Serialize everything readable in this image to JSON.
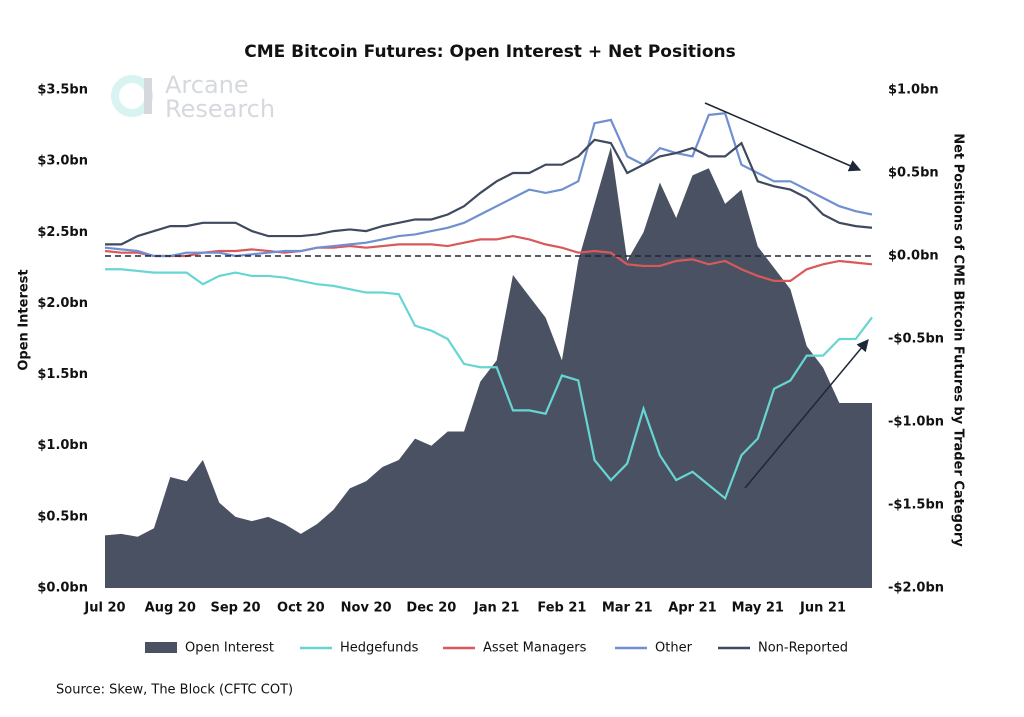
{
  "chart_data": {
    "type": "combo",
    "title": "CME Bitcoin Futures: Open Interest + Net Positions",
    "ylabel": "Open Interest",
    "y2label": "Net Positions of CME Bitcoin Futures by Trader Category",
    "source": "Source: Skew, The Block (CFTC COT)",
    "logo": [
      "Arcane",
      "Research"
    ],
    "x": [
      0,
      0.25,
      0.5,
      0.75,
      1,
      1.25,
      1.5,
      1.75,
      2,
      2.25,
      2.5,
      2.75,
      3,
      3.25,
      3.5,
      3.75,
      4,
      4.25,
      4.5,
      4.75,
      5,
      5.25,
      5.5,
      5.75,
      6,
      6.25,
      6.5,
      6.75,
      7,
      7.25,
      7.5,
      7.75,
      8,
      8.25,
      8.5,
      8.75,
      9,
      9.25,
      9.5,
      9.75,
      10,
      10.25,
      10.5,
      10.75,
      11,
      11.25,
      11.5,
      11.75
    ],
    "xlim": [
      0,
      11.75
    ],
    "xticks": [
      {
        "value": 0,
        "label": "Jul 20"
      },
      {
        "value": 1,
        "label": "Aug 20"
      },
      {
        "value": 2,
        "label": "Sep 20"
      },
      {
        "value": 3,
        "label": "Oct 20"
      },
      {
        "value": 4,
        "label": "Nov 20"
      },
      {
        "value": 5,
        "label": "Dec 20"
      },
      {
        "value": 6,
        "label": "Jan 21"
      },
      {
        "value": 7,
        "label": "Feb 21"
      },
      {
        "value": 8,
        "label": "Mar 21"
      },
      {
        "value": 9,
        "label": "Apr 21"
      },
      {
        "value": 10,
        "label": "May 21"
      },
      {
        "value": 11,
        "label": "Jun 21"
      }
    ],
    "ylim": [
      0,
      3.5
    ],
    "yticks": [
      {
        "value": 0,
        "label": "$0.0bn"
      },
      {
        "value": 0.5,
        "label": "$0.5bn"
      },
      {
        "value": 1,
        "label": "$1.0bn"
      },
      {
        "value": 1.5,
        "label": "$1.5bn"
      },
      {
        "value": 2,
        "label": "$2.0bn"
      },
      {
        "value": 2.5,
        "label": "$2.5bn"
      },
      {
        "value": 3,
        "label": "$3.0bn"
      },
      {
        "value": 3.5,
        "label": "$3.5bn"
      }
    ],
    "y2lim": [
      -2,
      1
    ],
    "y2ticks": [
      {
        "value": -2,
        "label": "-$2.0bn"
      },
      {
        "value": -1.5,
        "label": "-$1.5bn"
      },
      {
        "value": -1,
        "label": "-$1.0bn"
      },
      {
        "value": -0.5,
        "label": "-$0.5bn"
      },
      {
        "value": 0,
        "label": "$0.0bn"
      },
      {
        "value": 0.5,
        "label": "$0.5bn"
      },
      {
        "value": 1,
        "label": "$1.0bn"
      }
    ],
    "series": [
      {
        "name": "Open Interest",
        "type": "area",
        "color": "#4a5163",
        "values": [
          0.37,
          0.38,
          0.36,
          0.42,
          0.78,
          0.75,
          0.9,
          0.6,
          0.5,
          0.47,
          0.5,
          0.45,
          0.38,
          0.45,
          0.55,
          0.7,
          0.75,
          0.85,
          0.9,
          1.05,
          1.0,
          1.1,
          1.1,
          1.45,
          1.6,
          2.2,
          2.05,
          1.9,
          1.6,
          2.3,
          2.7,
          3.1,
          2.3,
          2.5,
          2.85,
          2.6,
          2.9,
          2.95,
          2.7,
          2.8,
          2.4,
          2.25,
          2.1,
          1.7,
          1.55,
          1.3,
          1.3,
          1.3
        ]
      },
      {
        "name": "Hedgefunds",
        "type": "line",
        "axis": "y2",
        "color": "#67d6d3",
        "values": [
          -0.08,
          -0.08,
          -0.09,
          -0.1,
          -0.1,
          -0.1,
          -0.17,
          -0.12,
          -0.1,
          -0.12,
          -0.12,
          -0.13,
          -0.15,
          -0.17,
          -0.18,
          -0.2,
          -0.22,
          -0.22,
          -0.23,
          -0.42,
          -0.45,
          -0.5,
          -0.65,
          -0.67,
          -0.67,
          -0.93,
          -0.93,
          -0.95,
          -0.72,
          -0.75,
          -1.23,
          -1.35,
          -1.25,
          -0.92,
          -1.2,
          -1.35,
          -1.3,
          -1.38,
          -1.46,
          -1.2,
          -1.1,
          -0.8,
          -0.75,
          -0.6,
          -0.6,
          -0.5,
          -0.5,
          -0.37
        ]
      },
      {
        "name": "Asset Managers",
        "type": "line",
        "axis": "y2",
        "color": "#d9595b",
        "values": [
          0.03,
          0.02,
          0.02,
          0.0,
          0.0,
          0.0,
          0.02,
          0.03,
          0.03,
          0.04,
          0.03,
          0.02,
          0.03,
          0.05,
          0.05,
          0.06,
          0.05,
          0.06,
          0.07,
          0.07,
          0.07,
          0.06,
          0.08,
          0.1,
          0.1,
          0.12,
          0.1,
          0.07,
          0.05,
          0.02,
          0.03,
          0.02,
          -0.05,
          -0.06,
          -0.06,
          -0.03,
          -0.02,
          -0.05,
          -0.03,
          -0.08,
          -0.12,
          -0.15,
          -0.15,
          -0.08,
          -0.05,
          -0.03,
          -0.04,
          -0.05
        ]
      },
      {
        "name": "Other",
        "type": "line",
        "axis": "y2",
        "color": "#6f8fd1",
        "values": [
          0.05,
          0.04,
          0.03,
          0.0,
          0.0,
          0.02,
          0.02,
          0.02,
          0.0,
          0.01,
          0.02,
          0.03,
          0.03,
          0.05,
          0.06,
          0.07,
          0.08,
          0.1,
          0.12,
          0.13,
          0.15,
          0.17,
          0.2,
          0.25,
          0.3,
          0.35,
          0.4,
          0.38,
          0.4,
          0.45,
          0.8,
          0.82,
          0.6,
          0.55,
          0.65,
          0.62,
          0.6,
          0.85,
          0.86,
          0.55,
          0.5,
          0.45,
          0.45,
          0.4,
          0.35,
          0.3,
          0.27,
          0.25
        ]
      },
      {
        "name": "Non-Reported",
        "type": "line",
        "axis": "y2",
        "color": "#3f4a5e",
        "values": [
          0.07,
          0.07,
          0.12,
          0.15,
          0.18,
          0.18,
          0.2,
          0.2,
          0.2,
          0.15,
          0.12,
          0.12,
          0.12,
          0.13,
          0.15,
          0.16,
          0.15,
          0.18,
          0.2,
          0.22,
          0.22,
          0.25,
          0.3,
          0.38,
          0.45,
          0.5,
          0.5,
          0.55,
          0.55,
          0.6,
          0.7,
          0.68,
          0.5,
          0.55,
          0.6,
          0.62,
          0.65,
          0.6,
          0.6,
          0.68,
          0.45,
          0.42,
          0.4,
          0.35,
          0.25,
          0.2,
          0.18,
          0.17
        ]
      }
    ],
    "zero_line": true
  }
}
